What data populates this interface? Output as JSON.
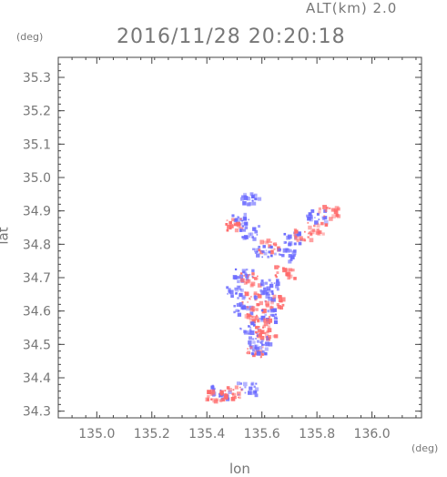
{
  "header": {
    "alt_label": "ALT(km) 2.0",
    "timestamp": "2016/11/28 20:20:18"
  },
  "chart_data": {
    "type": "heatmap",
    "title": "2016/11/28 20:20:18",
    "subtitle": "ALT(km) 2.0",
    "xlabel": "lon",
    "ylabel": "lat",
    "x_unit": "(deg)",
    "y_unit": "(deg)",
    "xlim": [
      134.86,
      136.18
    ],
    "ylim": [
      34.28,
      35.36
    ],
    "xticks": [
      "135.0",
      "135.2",
      "135.4",
      "135.6",
      "135.8",
      "136.0"
    ],
    "yticks": [
      "34.3",
      "34.4",
      "34.5",
      "34.6",
      "34.7",
      "34.8",
      "34.9",
      "35.0",
      "35.1",
      "35.2",
      "35.3"
    ],
    "grid": false,
    "colors": {
      "positive": "#ff6b6b",
      "negative": "#6b6bff",
      "frame": "#333333"
    },
    "clusters": [
      {
        "lon": 135.55,
        "lat": 34.94,
        "sign": "negative"
      },
      {
        "lon": 135.52,
        "lat": 34.88,
        "sign": "negative"
      },
      {
        "lon": 135.5,
        "lat": 34.86,
        "sign": "positive"
      },
      {
        "lon": 135.55,
        "lat": 34.84,
        "sign": "negative"
      },
      {
        "lon": 135.62,
        "lat": 34.8,
        "sign": "positive"
      },
      {
        "lon": 135.6,
        "lat": 34.78,
        "sign": "negative"
      },
      {
        "lon": 135.68,
        "lat": 34.77,
        "sign": "negative"
      },
      {
        "lon": 135.71,
        "lat": 34.82,
        "sign": "negative"
      },
      {
        "lon": 135.79,
        "lat": 34.89,
        "sign": "negative"
      },
      {
        "lon": 135.84,
        "lat": 34.9,
        "sign": "positive"
      },
      {
        "lon": 135.8,
        "lat": 34.85,
        "sign": "positive"
      },
      {
        "lon": 135.74,
        "lat": 34.83,
        "sign": "positive"
      },
      {
        "lon": 135.68,
        "lat": 34.72,
        "sign": "positive"
      },
      {
        "lon": 135.53,
        "lat": 34.71,
        "sign": "negative"
      },
      {
        "lon": 135.55,
        "lat": 34.7,
        "sign": "positive"
      },
      {
        "lon": 135.62,
        "lat": 34.68,
        "sign": "negative"
      },
      {
        "lon": 135.5,
        "lat": 34.66,
        "sign": "negative"
      },
      {
        "lon": 135.56,
        "lat": 34.64,
        "sign": "positive"
      },
      {
        "lon": 135.6,
        "lat": 34.65,
        "sign": "negative"
      },
      {
        "lon": 135.64,
        "lat": 34.63,
        "sign": "positive"
      },
      {
        "lon": 135.52,
        "lat": 34.61,
        "sign": "negative"
      },
      {
        "lon": 135.57,
        "lat": 34.6,
        "sign": "positive"
      },
      {
        "lon": 135.62,
        "lat": 34.59,
        "sign": "negative"
      },
      {
        "lon": 135.59,
        "lat": 34.57,
        "sign": "positive"
      },
      {
        "lon": 135.55,
        "lat": 34.55,
        "sign": "negative"
      },
      {
        "lon": 135.61,
        "lat": 34.54,
        "sign": "positive"
      },
      {
        "lon": 135.58,
        "lat": 34.51,
        "sign": "negative"
      },
      {
        "lon": 135.57,
        "lat": 34.48,
        "sign": "positive"
      },
      {
        "lon": 135.59,
        "lat": 34.49,
        "sign": "negative"
      },
      {
        "lon": 135.45,
        "lat": 34.36,
        "sign": "negative"
      },
      {
        "lon": 135.49,
        "lat": 34.36,
        "sign": "positive"
      },
      {
        "lon": 135.54,
        "lat": 34.37,
        "sign": "negative"
      },
      {
        "lon": 135.43,
        "lat": 34.35,
        "sign": "positive"
      }
    ]
  }
}
